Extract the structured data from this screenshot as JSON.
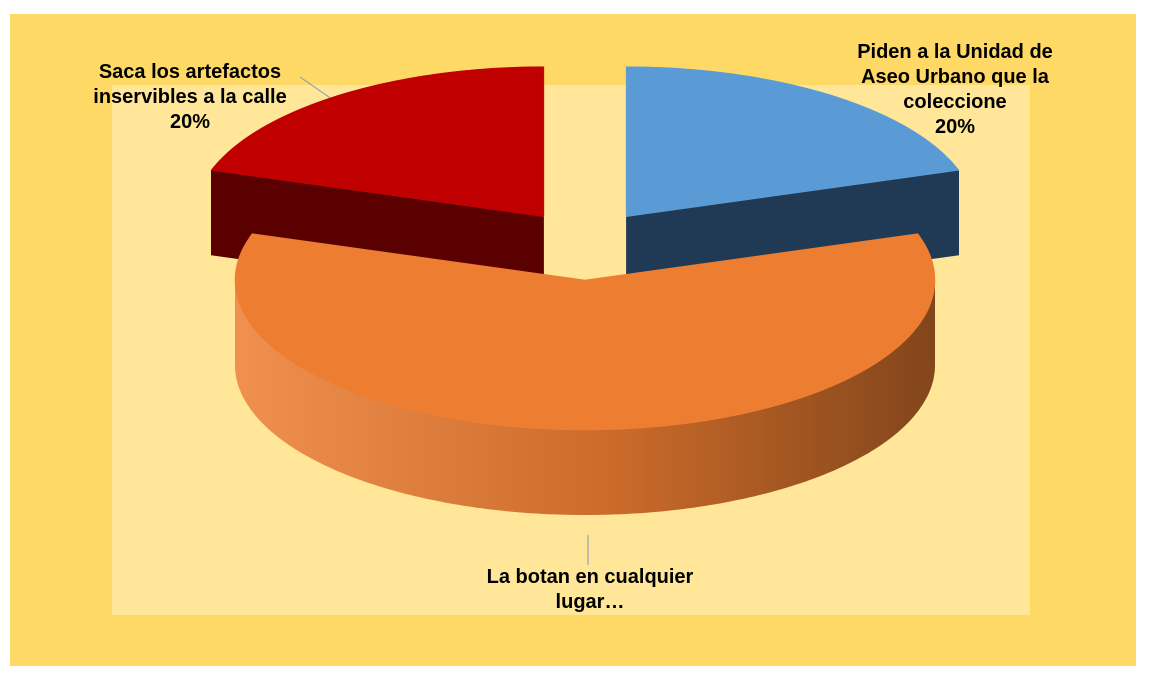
{
  "chart_data": {
    "type": "pie",
    "three_d": true,
    "categories": [
      "Piden a la Unidad de Aseo Urbano que la coleccione",
      "La botan en cualquier lugar…",
      "Saca los artefactos inservibles a la calle"
    ],
    "values": [
      20,
      60,
      20
    ],
    "value_labels": [
      "20%",
      null,
      "20%"
    ],
    "colors": [
      "#5b9bd5",
      "#ed7d31",
      "#c00000"
    ],
    "side_colors": [
      "#203a56",
      "#8a4414",
      "#5a0000"
    ]
  }
}
